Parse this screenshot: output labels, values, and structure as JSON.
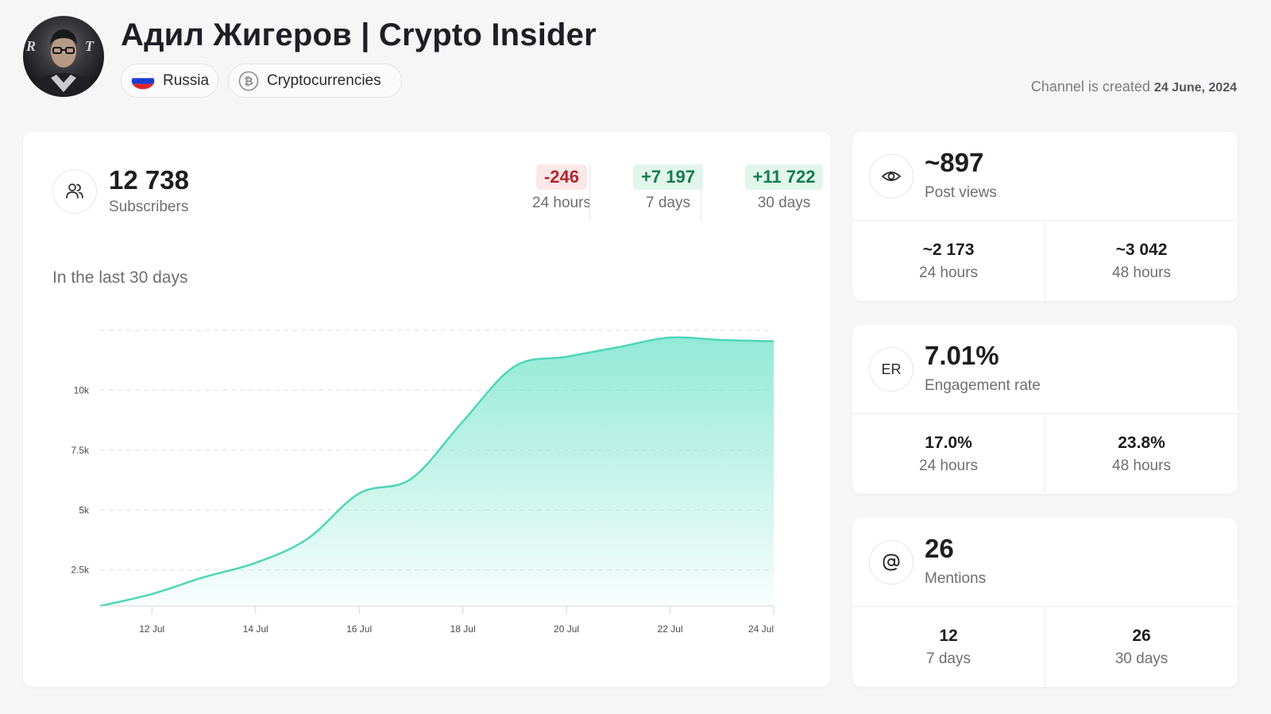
{
  "channel": {
    "title": "Адил Жигеров | Crypto Insider",
    "country": "Russia",
    "category": "Cryptocurrencies",
    "created_prefix": "Channel is created",
    "created_date": "24 June, 2024"
  },
  "subscribers": {
    "value": "12 738",
    "label": "Subscribers",
    "deltas": [
      {
        "value": "-246",
        "label": "24 hours",
        "sign": "negative"
      },
      {
        "value": "+7 197",
        "label": "7 days",
        "sign": "positive"
      },
      {
        "value": "+11 722",
        "label": "30 days",
        "sign": "positive"
      }
    ]
  },
  "chart_caption": "In the last 30 days",
  "chart_data": {
    "type": "area",
    "x": [
      "11 Jul",
      "12 Jul",
      "13 Jul",
      "14 Jul",
      "15 Jul",
      "16 Jul",
      "17 Jul",
      "18 Jul",
      "19 Jul",
      "20 Jul",
      "21 Jul",
      "22 Jul",
      "23 Jul",
      "24 Jul"
    ],
    "values": [
      1000,
      1500,
      2200,
      2800,
      3800,
      5700,
      6300,
      8700,
      11000,
      11400,
      11800,
      12200,
      12100,
      12050
    ],
    "x_ticks": [
      "12 Jul",
      "14 Jul",
      "16 Jul",
      "18 Jul",
      "20 Jul",
      "22 Jul",
      "24 Jul"
    ],
    "y_ticks": [
      {
        "value": 2500,
        "label": "2.5k"
      },
      {
        "value": 5000,
        "label": "5k"
      },
      {
        "value": 7500,
        "label": "7.5k"
      },
      {
        "value": 10000,
        "label": "10k"
      },
      {
        "value": 12500,
        "label": ""
      }
    ],
    "ylim": [
      1000,
      12500
    ],
    "grid": true,
    "line_color": "#4ed6b8",
    "fill_color": "#7fe6cf"
  },
  "post_views": {
    "value": "~897",
    "label": "Post views",
    "cells": [
      {
        "value": "~2 173",
        "label": "24 hours"
      },
      {
        "value": "~3 042",
        "label": "48 hours"
      }
    ]
  },
  "engagement": {
    "icon_text": "ER",
    "value": "7.01%",
    "label": "Engagement rate",
    "cells": [
      {
        "value": "17.0%",
        "label": "24 hours"
      },
      {
        "value": "23.8%",
        "label": "48 hours"
      }
    ]
  },
  "mentions": {
    "value": "26",
    "label": "Mentions",
    "cells": [
      {
        "value": "12",
        "label": "7 days"
      },
      {
        "value": "26",
        "label": "30 days"
      }
    ]
  },
  "icons": {
    "subscribers": "users-icon",
    "post_views": "eye-icon",
    "mentions": "at-sign-icon",
    "country": "russia-flag-icon",
    "category": "bitcoin-icon"
  }
}
